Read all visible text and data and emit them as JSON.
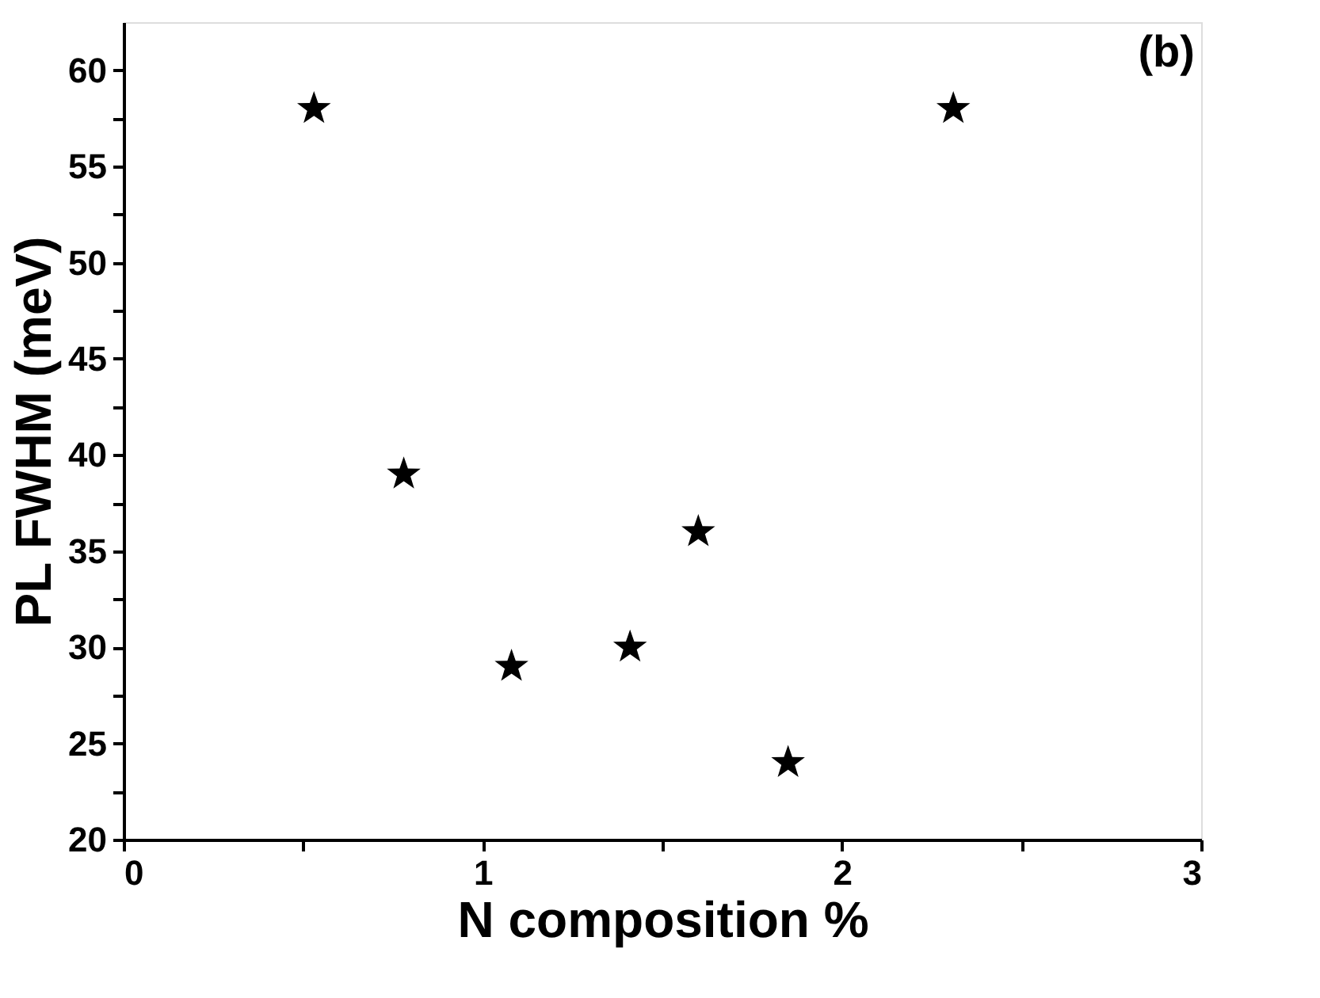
{
  "chart_data": {
    "type": "scatter",
    "xlabel": "N composition %",
    "ylabel": "PL FWHM (meV)",
    "x": [
      0.53,
      0.78,
      1.08,
      1.41,
      1.6,
      1.85,
      2.31
    ],
    "series": [
      {
        "color": "#000000",
        "values": [
          58,
          39,
          29,
          30,
          36,
          24,
          58
        ]
      }
    ],
    "xlim": [
      0,
      3
    ],
    "xticks": [
      0,
      {
        "value": 0.5,
        "label": null
      },
      1,
      {
        "value": 1.5,
        "label": null
      },
      2,
      {
        "value": 2.5,
        "label": null
      },
      3
    ],
    "ylim": [
      20,
      62.5
    ],
    "yticks": [
      20,
      {
        "value": 22.5,
        "label": null
      },
      25,
      {
        "value": 27.5,
        "label": null
      },
      30,
      {
        "value": 32.5,
        "label": null
      },
      35,
      {
        "value": 37.5,
        "label": null
      },
      40,
      {
        "value": 42.5,
        "label": null
      },
      45,
      {
        "value": 47.5,
        "label": null
      },
      50,
      {
        "value": 52.5,
        "label": null
      },
      55,
      {
        "value": 57.5,
        "label": null
      },
      60
    ],
    "marker": "star",
    "grid": false,
    "annotations": [
      "(b)"
    ]
  }
}
